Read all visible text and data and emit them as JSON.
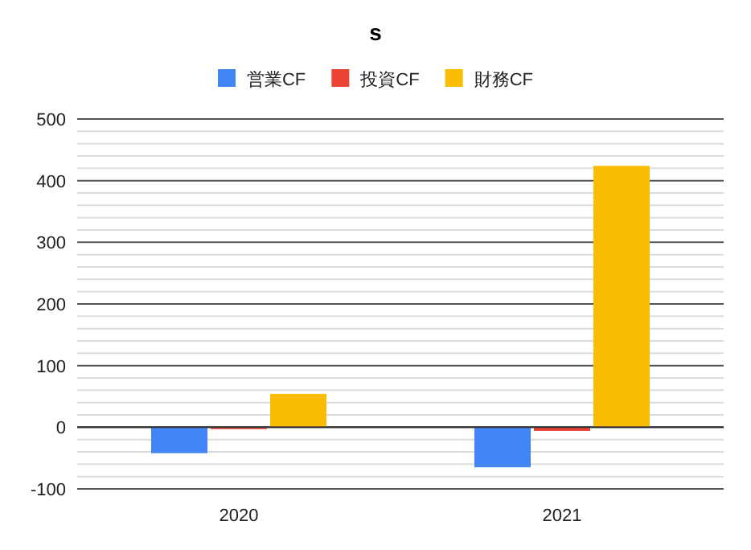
{
  "chart_data": {
    "type": "bar",
    "title": "s",
    "categories": [
      "2020",
      "2021"
    ],
    "series": [
      {
        "name": "営業CF",
        "color": "#4285f4",
        "values": [
          -42,
          -65
        ]
      },
      {
        "name": "投資CF",
        "color": "#ea4335",
        "values": [
          -3,
          -6
        ]
      },
      {
        "name": "財務CF",
        "color": "#fbbc04",
        "values": [
          54,
          424
        ]
      }
    ],
    "ylim": [
      -100,
      500
    ],
    "yticks": [
      -100,
      0,
      100,
      200,
      300,
      400,
      500
    ],
    "grid": "y",
    "legend": "top"
  }
}
